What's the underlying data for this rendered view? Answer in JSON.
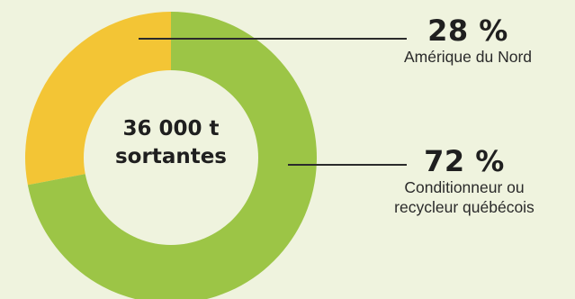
{
  "chart_data": {
    "type": "pie",
    "center_label": [
      "36 000 t",
      "sortantes"
    ],
    "categories": [
      "Amérique du Nord",
      "Conditionneur ou recycleur québécois"
    ],
    "values": [
      28,
      72
    ],
    "percent_labels": [
      "28 %",
      "72 %"
    ],
    "category_label_lines": [
      [
        "Amérique du Nord"
      ],
      [
        "Conditionneur ou",
        "recycleur québécois"
      ]
    ],
    "colors": [
      "#f3c535",
      "#9cc546"
    ],
    "background": "#eff3de",
    "title": "",
    "legend": "none"
  }
}
